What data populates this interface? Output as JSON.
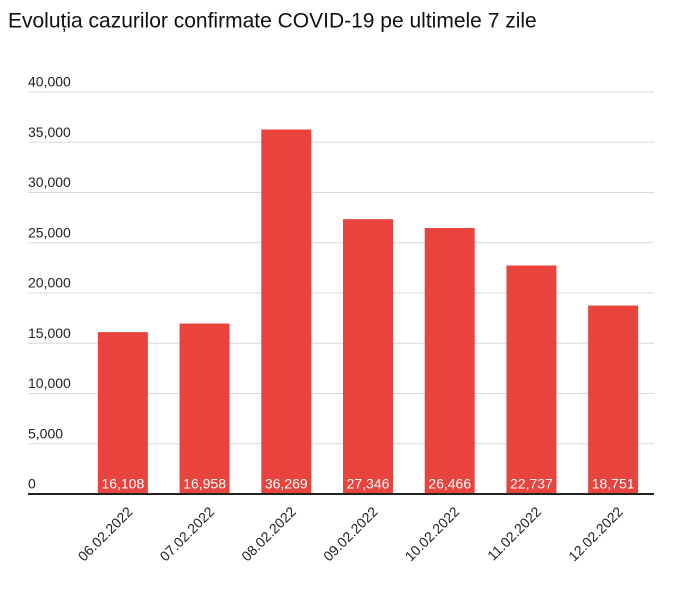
{
  "chart_data": {
    "type": "bar",
    "title": "Evoluția cazurilor confirmate COVID-19 pe ultimele 7 zile",
    "categories": [
      "06.02.2022",
      "07.02.2022",
      "08.02.2022",
      "09.02.2022",
      "10.02.2022",
      "11.02.2022",
      "12.02.2022"
    ],
    "values": [
      16108,
      16958,
      36269,
      27346,
      26466,
      22737,
      18751
    ],
    "value_labels": [
      "16,108",
      "16,958",
      "36,269",
      "27,346",
      "26,466",
      "22,737",
      "18,751"
    ],
    "color": "#e8433c",
    "ylim": [
      0,
      40000
    ],
    "yticks": [
      0,
      {
        "value": 5000,
        "label": "5,000"
      },
      {
        "value": 10000,
        "label": "10,000"
      },
      {
        "value": 15000,
        "label": "15,000"
      },
      {
        "value": 20000,
        "label": "20,000"
      },
      {
        "value": 25000,
        "label": "25,000"
      },
      {
        "value": 30000,
        "label": "30,000"
      },
      {
        "value": 35000,
        "label": "35,000"
      },
      {
        "value": 40000,
        "label": "40,000"
      }
    ],
    "grid": true
  }
}
